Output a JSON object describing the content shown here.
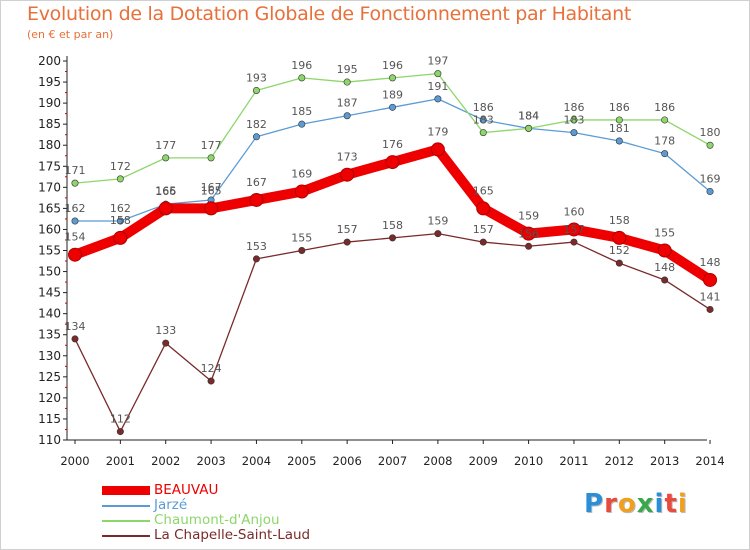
{
  "title": "Evolution de la Dotation Globale de Fonctionnement par Habitant",
  "subtitle": "(en € et par an)",
  "logo": {
    "text": "Proxiti",
    "colors": [
      "#2a8fd6",
      "#e84a3c",
      "#f0a020",
      "#39a84a",
      "#2a8fd6",
      "#e84a3c",
      "#f0a020"
    ]
  },
  "chart_data": {
    "type": "line",
    "title": "Evolution de la Dotation Globale de Fonctionnement par Habitant",
    "ylabel": "(en € et par an)",
    "xlabel": "",
    "ylim": [
      110,
      200
    ],
    "yticks": [
      110,
      115,
      120,
      125,
      130,
      135,
      140,
      145,
      150,
      155,
      160,
      165,
      170,
      175,
      180,
      185,
      190,
      195,
      200
    ],
    "grid": false,
    "legend_position": "bottom-left",
    "x": [
      "2000",
      "2001",
      "2002",
      "2003",
      "2004",
      "2005",
      "2006",
      "2007",
      "2008",
      "2009",
      "2010",
      "2011",
      "2012",
      "2013",
      "2014"
    ],
    "series": [
      {
        "name": "BEAUVAU",
        "color": "#ee0000",
        "values": [
          154,
          158,
          165,
          165,
          167,
          169,
          173,
          176,
          179,
          165,
          159,
          160,
          158,
          155,
          148
        ]
      },
      {
        "name": "Jarzé",
        "color": "#5b9bd5",
        "values": [
          162,
          162,
          166,
          167,
          182,
          185,
          187,
          189,
          191,
          186,
          184,
          183,
          181,
          178,
          169
        ]
      },
      {
        "name": "Chaumont-d'Anjou",
        "color": "#8dd66a",
        "values": [
          171,
          172,
          177,
          177,
          193,
          196,
          195,
          196,
          197,
          183,
          184,
          186,
          186,
          186,
          180
        ]
      },
      {
        "name": "La Chapelle-Saint-Laud",
        "color": "#7a2a2a",
        "values": [
          134,
          112,
          133,
          124,
          153,
          155,
          157,
          158,
          159,
          157,
          156,
          157,
          152,
          148,
          141
        ]
      }
    ],
    "data_labels": [
      {
        "series": "BEAUVAU",
        "labels": [
          "154",
          "158",
          "165",
          "165",
          "167",
          "169",
          "173",
          "176",
          "179",
          "165",
          "159",
          "160",
          "158",
          "155",
          "148"
        ]
      },
      {
        "series": "Jarzé",
        "labels": [
          "162",
          "162",
          "166",
          "167",
          "182",
          "185",
          "187",
          "189",
          "191",
          "186",
          "184",
          "183",
          "181",
          "178",
          "169"
        ]
      },
      {
        "series": "Chaumont-d'Anjou",
        "labels": [
          "171",
          "172",
          "177",
          "177",
          "193",
          "196",
          "195",
          "196",
          "197",
          "183",
          "184",
          "186",
          "186",
          "186",
          "180"
        ]
      },
      {
        "series": "La Chapelle-Saint-Laud",
        "labels": [
          "134",
          "112",
          "133",
          "124",
          "153",
          "155",
          "157",
          "158",
          "159",
          "157",
          "156",
          "157",
          "152",
          "148",
          "141"
        ]
      }
    ]
  }
}
